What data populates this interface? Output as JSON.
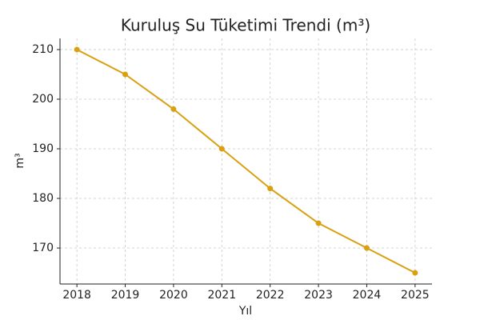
{
  "chart_data": {
    "type": "line",
    "title": "Kuruluş Su Tüketimi Trendi (m³)",
    "x_label": "Yıl",
    "y_label": "m³",
    "x": [
      2018,
      2019,
      2020,
      2021,
      2022,
      2023,
      2024,
      2025
    ],
    "values": [
      210,
      205,
      198,
      190,
      182,
      175,
      170,
      165
    ],
    "color": "#d9a010",
    "xlim": [
      2017.65,
      2025.35
    ],
    "xticks": [
      2018,
      2019,
      2020,
      2021,
      2022,
      2023,
      2024,
      2025
    ],
    "ylim": [
      162.75,
      212.25
    ],
    "yticks": [
      170,
      180,
      190,
      200,
      210
    ],
    "grid": true
  }
}
